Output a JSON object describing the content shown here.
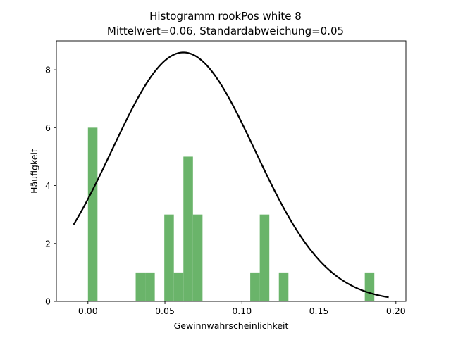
{
  "chart_data": {
    "type": "bar",
    "title_line1": "Histogramm rookPos white 8",
    "title_line2": "Mittelwert=0.06, Standardabweichung=0.05",
    "xlabel": "Gewinnwahrscheinlichkeit",
    "ylabel": "Häufigkeit",
    "xlim": [
      -0.0205,
      0.2065
    ],
    "ylim": [
      0,
      9
    ],
    "xticks": [
      0.0,
      0.05,
      0.1,
      0.15,
      0.2
    ],
    "xtick_labels": [
      "0.00",
      "0.05",
      "0.10",
      "0.15",
      "0.20"
    ],
    "yticks": [
      0,
      2,
      4,
      6,
      8
    ],
    "ytick_labels": [
      "0",
      "2",
      "4",
      "6",
      "8"
    ],
    "bar_color": "#6ab46a",
    "curve_color": "#000000",
    "bins": [
      {
        "x0": 0.0,
        "x1": 0.0062,
        "count": 6
      },
      {
        "x0": 0.031,
        "x1": 0.0372,
        "count": 1
      },
      {
        "x0": 0.0372,
        "x1": 0.0434,
        "count": 1
      },
      {
        "x0": 0.0496,
        "x1": 0.0558,
        "count": 3
      },
      {
        "x0": 0.0558,
        "x1": 0.062,
        "count": 1
      },
      {
        "x0": 0.062,
        "x1": 0.0682,
        "count": 5
      },
      {
        "x0": 0.0682,
        "x1": 0.0744,
        "count": 3
      },
      {
        "x0": 0.1054,
        "x1": 0.1116,
        "count": 1
      },
      {
        "x0": 0.1116,
        "x1": 0.1178,
        "count": 3
      },
      {
        "x0": 0.124,
        "x1": 0.1302,
        "count": 1
      },
      {
        "x0": 0.1798,
        "x1": 0.186,
        "count": 1
      }
    ],
    "normal_curve": {
      "mean": 0.062,
      "std": 0.0465,
      "peak": 8.6,
      "x_range": [
        -0.0093,
        0.1953
      ]
    },
    "grid": false,
    "legend": "none"
  }
}
